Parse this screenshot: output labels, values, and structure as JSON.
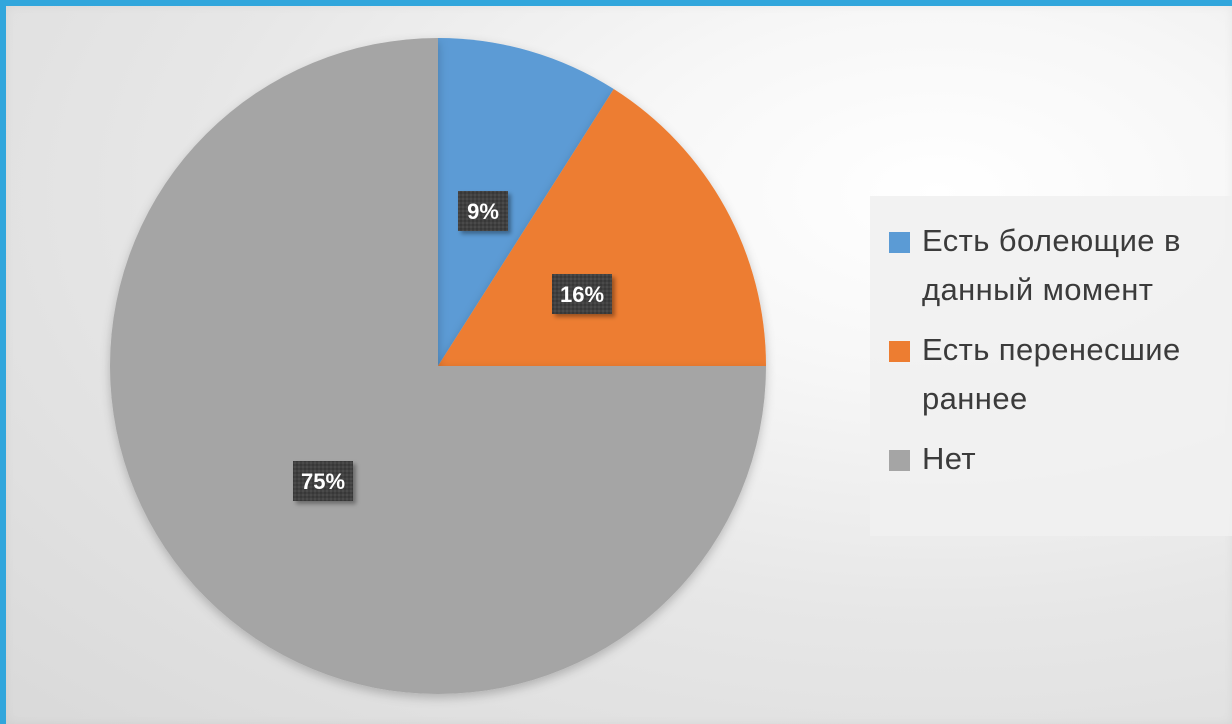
{
  "chart_data": {
    "type": "pie",
    "title": "",
    "start_angle": 0,
    "slices": [
      {
        "label": "Есть болеющие в данный момент",
        "value": 9,
        "display": "9%",
        "color": "#5b9bd5"
      },
      {
        "label": "Есть перенесшие раннее",
        "value": 16,
        "display": "16%",
        "color": "#ed7d31"
      },
      {
        "label": "Нет",
        "value": 75,
        "display": "75%",
        "color": "#a5a5a5"
      }
    ],
    "legend_position": "right",
    "data_label_style": "dark box"
  },
  "colors": {
    "frame_border": "#31a6dc",
    "label_background": "#404040",
    "label_text": "#ffffff"
  }
}
